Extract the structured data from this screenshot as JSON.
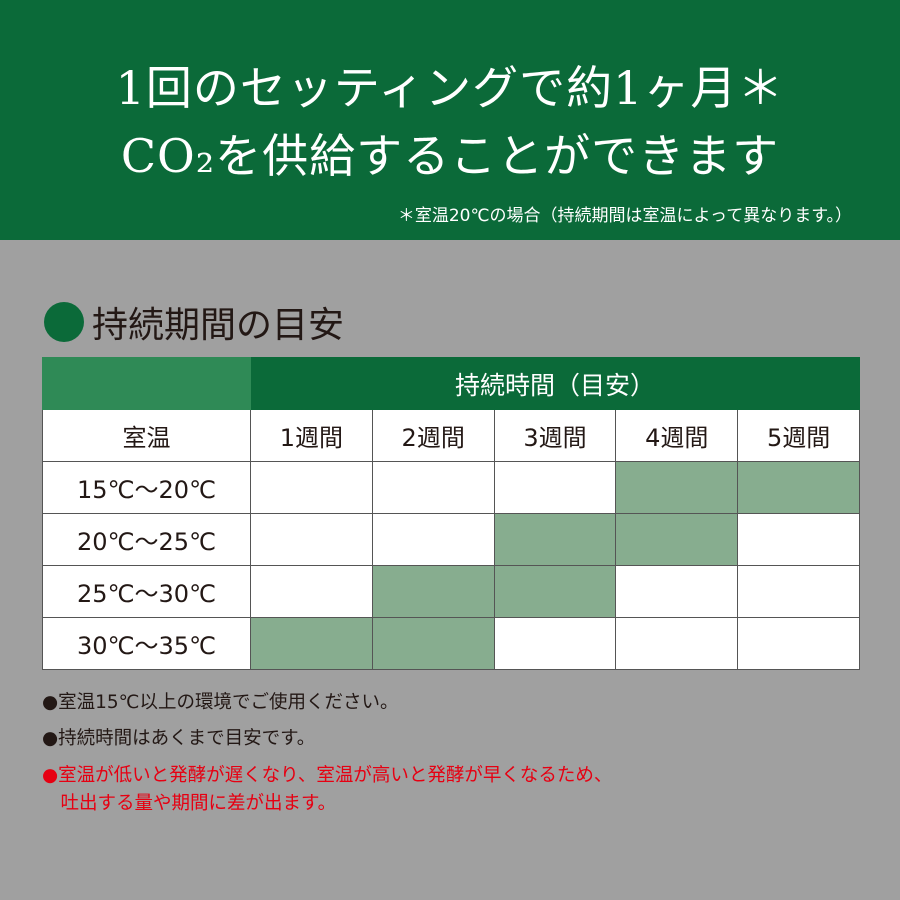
{
  "header": {
    "line1": "1回のセッティングで約1ヶ月＊",
    "line2": "CO₂を供給することができます",
    "footnote": "＊室温20℃の場合（持続期間は室温によって異なります。）"
  },
  "section_title": "持続期間の目安",
  "table": {
    "group_header": "持続時間（目安）",
    "row_header": "室温",
    "columns": [
      "1週間",
      "2週間",
      "3週間",
      "4週間",
      "5週間"
    ],
    "rows": [
      {
        "label": "15℃〜20℃",
        "filled": [
          false,
          false,
          false,
          true,
          true
        ]
      },
      {
        "label": "20℃〜25℃",
        "filled": [
          false,
          false,
          true,
          true,
          false
        ]
      },
      {
        "label": "25℃〜30℃",
        "filled": [
          false,
          true,
          true,
          false,
          false
        ]
      },
      {
        "label": "30℃〜35℃",
        "filled": [
          true,
          true,
          false,
          false,
          false
        ]
      }
    ],
    "fill_color": "#87ad8f"
  },
  "notes": [
    {
      "text": "●室温15℃以上の環境でご使用ください。",
      "color": "#231815"
    },
    {
      "text": "●持続時間はあくまで目安です。",
      "color": "#231815"
    },
    {
      "text": "●室温が低いと発酵が遅くなり、室温が高いと発酵が早くなるため、",
      "color": "#e60012"
    },
    {
      "text": "　吐出する量や期間に差が出ます。",
      "color": "#e60012"
    }
  ],
  "colors": {
    "brand_green": "#0b6a39",
    "background": "#a0a0a0"
  }
}
